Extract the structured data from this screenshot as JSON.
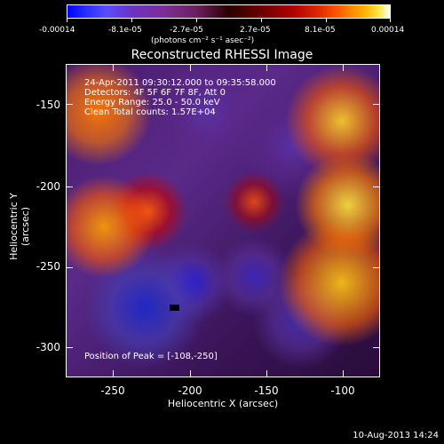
{
  "colorbar": {
    "tick_labels": [
      "-0.00014",
      "-8.1e-05",
      "-2.7e-05",
      "2.7e-05",
      "8.1e-05",
      "0.00014"
    ],
    "units_label": "(photons cm⁻² s⁻¹ asec⁻²)"
  },
  "title": "Reconstructed RHESSI Image",
  "info": {
    "line1": "24-Apr-2011 09:30:12.000 to 09:35:58.000",
    "line2": "Detectors: 4F 5F 6F 7F 8F, Att 0",
    "line3": "Energy Range: 25.0 - 50.0 keV",
    "line4": "Clean     Total counts: 1.57E+04"
  },
  "peak_label": "Position of Peak = [-108,-250]",
  "axes": {
    "xlabel": "Heliocentric X (arcsec)",
    "ylabel": "Heliocentric Y (arcsec)",
    "x_ticks": [
      "-250",
      "-200",
      "-150",
      "-100"
    ],
    "y_ticks": [
      "-150",
      "-200",
      "-250",
      "-300"
    ]
  },
  "timestamp": "10-Aug-2013 14:24"
}
